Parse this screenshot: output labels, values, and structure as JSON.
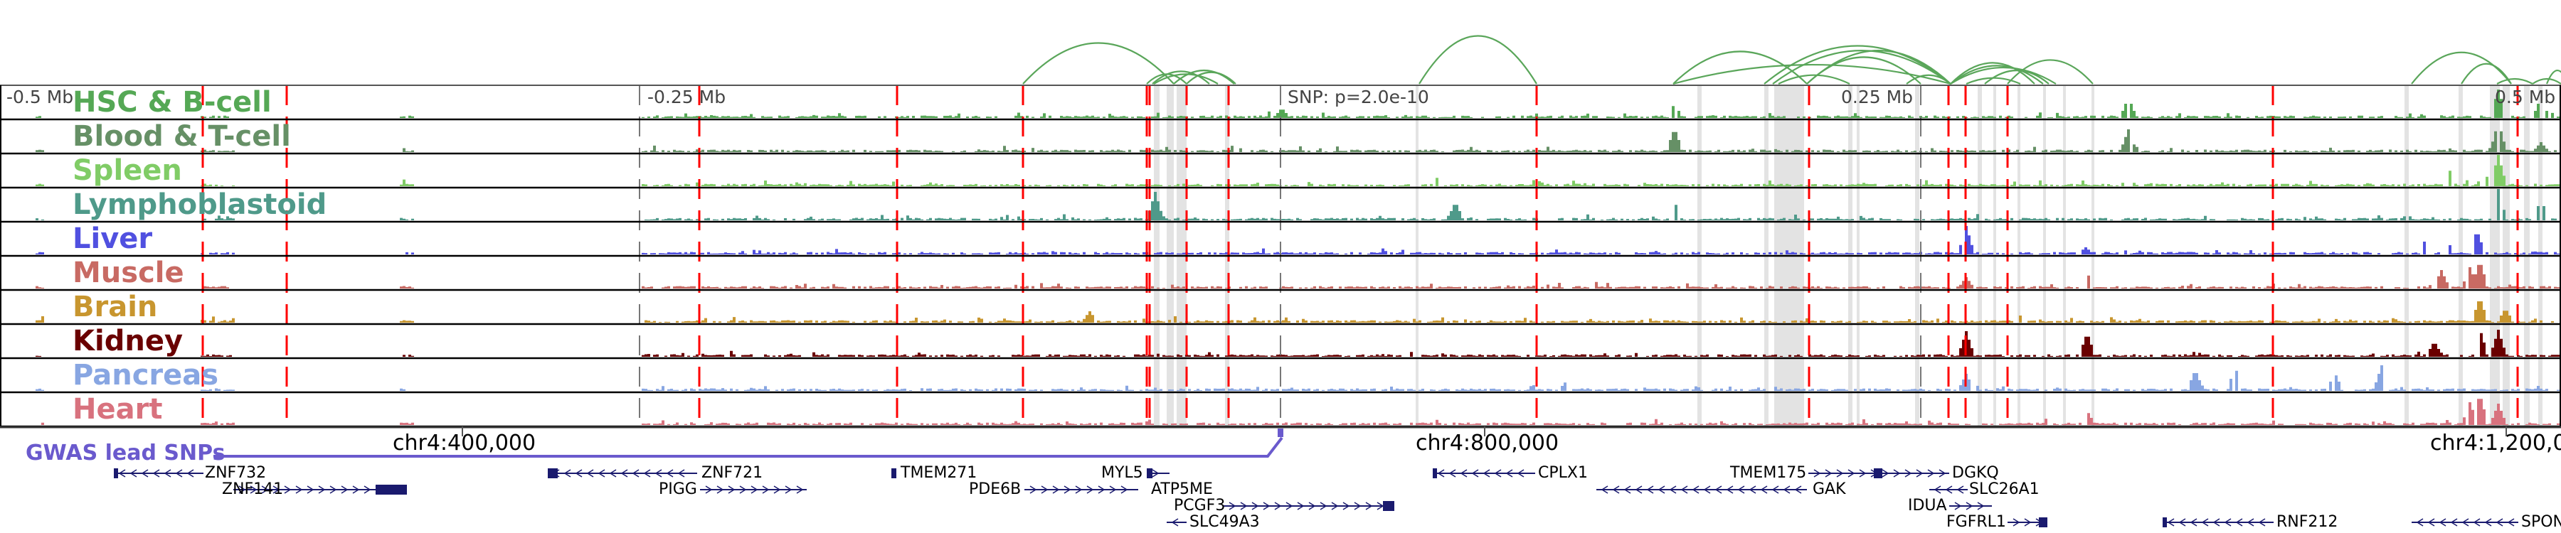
{
  "colors": {
    "arc": "#5aa65a",
    "enhancer_line": "#ff0000",
    "highlight_band": "#e3e3e3",
    "gene": "#1a1a6e",
    "gwas": "#6a5acd",
    "border": "#000000"
  },
  "tracks": [
    {
      "label": "HSC & B-cell",
      "color": "#55a855"
    },
    {
      "label": "Blood & T-cell",
      "color": "#669066"
    },
    {
      "label": "Spleen",
      "color": "#80cc66"
    },
    {
      "label": "Lymphoblastoid",
      "color": "#4f9a8a"
    },
    {
      "label": "Liver",
      "color": "#5050e0"
    },
    {
      "label": "Muscle",
      "color": "#c86a63"
    },
    {
      "label": "Brain",
      "color": "#c8962f"
    },
    {
      "label": "Kidney",
      "color": "#6a0000"
    },
    {
      "label": "Pancreas",
      "color": "#88a6e2"
    },
    {
      "label": "Heart",
      "color": "#d8727e"
    }
  ],
  "scale_labels": [
    "-0.5 Mb",
    "-0.25 Mb",
    "SNP: p=2.0e-10",
    "0.25 Mb",
    "0.5 Mb"
  ],
  "coordinates": [
    "chr4:400,000",
    "chr4:800,000",
    "chr4:1,200,0"
  ],
  "gwas_label": "GWAS lead SNPs",
  "genes": [
    {
      "name": "ZNF732",
      "strand": "-"
    },
    {
      "name": "ZNF141",
      "strand": "+"
    },
    {
      "name": "ZNF721",
      "strand": "-"
    },
    {
      "name": "PIGG",
      "strand": "+"
    },
    {
      "name": "TMEM271",
      "strand": "+"
    },
    {
      "name": "PDE6B",
      "strand": "+"
    },
    {
      "name": "MYL5",
      "strand": "+"
    },
    {
      "name": "ATP5ME",
      "strand": "-"
    },
    {
      "name": "PCGF3",
      "strand": "+"
    },
    {
      "name": "SLC49A3",
      "strand": "-"
    },
    {
      "name": "CPLX1",
      "strand": "-"
    },
    {
      "name": "TMEM175",
      "strand": "+"
    },
    {
      "name": "GAK",
      "strand": "-"
    },
    {
      "name": "DGKQ",
      "strand": "-"
    },
    {
      "name": "SLC26A1",
      "strand": "-"
    },
    {
      "name": "IDUA",
      "strand": "+"
    },
    {
      "name": "FGFRL1",
      "strand": "+"
    },
    {
      "name": "RNF212",
      "strand": "-"
    },
    {
      "name": "SPON",
      "strand": "-"
    }
  ]
}
